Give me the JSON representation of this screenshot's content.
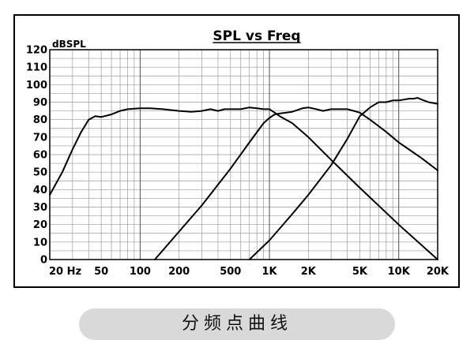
{
  "caption": "分频点曲线",
  "chart_data": {
    "type": "line",
    "title": "SPL vs Freq",
    "ylabel": "dBSPL",
    "xlabel": "",
    "x_scale": "log",
    "xlim": [
      20,
      20000
    ],
    "ylim": [
      0,
      120
    ],
    "grid": true,
    "x_ticks": [
      {
        "value": 20,
        "label": "20 Hz"
      },
      {
        "value": 50,
        "label": "50"
      },
      {
        "value": 100,
        "label": "100"
      },
      {
        "value": 200,
        "label": "200"
      },
      {
        "value": 500,
        "label": "500"
      },
      {
        "value": 1000,
        "label": "1K"
      },
      {
        "value": 2000,
        "label": "2K"
      },
      {
        "value": 5000,
        "label": "5K"
      },
      {
        "value": 10000,
        "label": "10K"
      },
      {
        "value": 20000,
        "label": "20K"
      }
    ],
    "y_ticks": [
      0,
      10,
      20,
      30,
      40,
      50,
      60,
      70,
      80,
      90,
      100,
      110,
      120
    ],
    "series": [
      {
        "color": "#000000",
        "x": [
          20,
          25,
          30,
          35,
          40,
          45,
          50,
          60,
          70,
          80,
          100,
          120,
          150,
          200,
          250,
          300,
          350,
          400,
          450,
          500,
          600,
          700,
          800,
          900,
          1000,
          1100,
          1200,
          1500,
          2000,
          3000,
          5000,
          10000,
          20000
        ],
        "y": [
          37,
          50,
          63,
          73,
          80,
          82,
          81.5,
          83,
          85,
          86,
          86.5,
          86.5,
          86,
          85,
          84.5,
          85,
          86,
          85,
          86,
          86,
          86,
          87,
          86.5,
          86,
          86,
          84,
          82,
          78,
          70,
          57,
          41,
          20,
          0
        ]
      },
      {
        "color": "#000000",
        "x": [
          130,
          200,
          300,
          500,
          700,
          900,
          1000,
          1100,
          1200,
          1500,
          1800,
          2000,
          2300,
          2600,
          3000,
          3500,
          4000,
          4500,
          5000,
          6000,
          8000,
          10000,
          15000,
          20000
        ],
        "y": [
          0,
          16,
          31,
          52,
          67,
          78,
          81,
          83,
          83.5,
          84.5,
          86.5,
          87,
          86,
          85,
          86,
          86,
          86,
          85,
          84,
          80,
          73,
          67,
          58,
          51
        ]
      },
      {
        "color": "#000000",
        "x": [
          700,
          1000,
          1500,
          2000,
          3000,
          4000,
          5000,
          6000,
          7000,
          8000,
          9000,
          10000,
          11000,
          12000,
          13000,
          14000,
          15000,
          17000,
          20000
        ],
        "y": [
          0,
          11,
          26,
          37,
          54,
          69,
          82,
          87,
          90,
          90,
          91,
          91,
          91.5,
          92,
          92,
          92.5,
          91.5,
          90,
          89
        ]
      }
    ]
  }
}
